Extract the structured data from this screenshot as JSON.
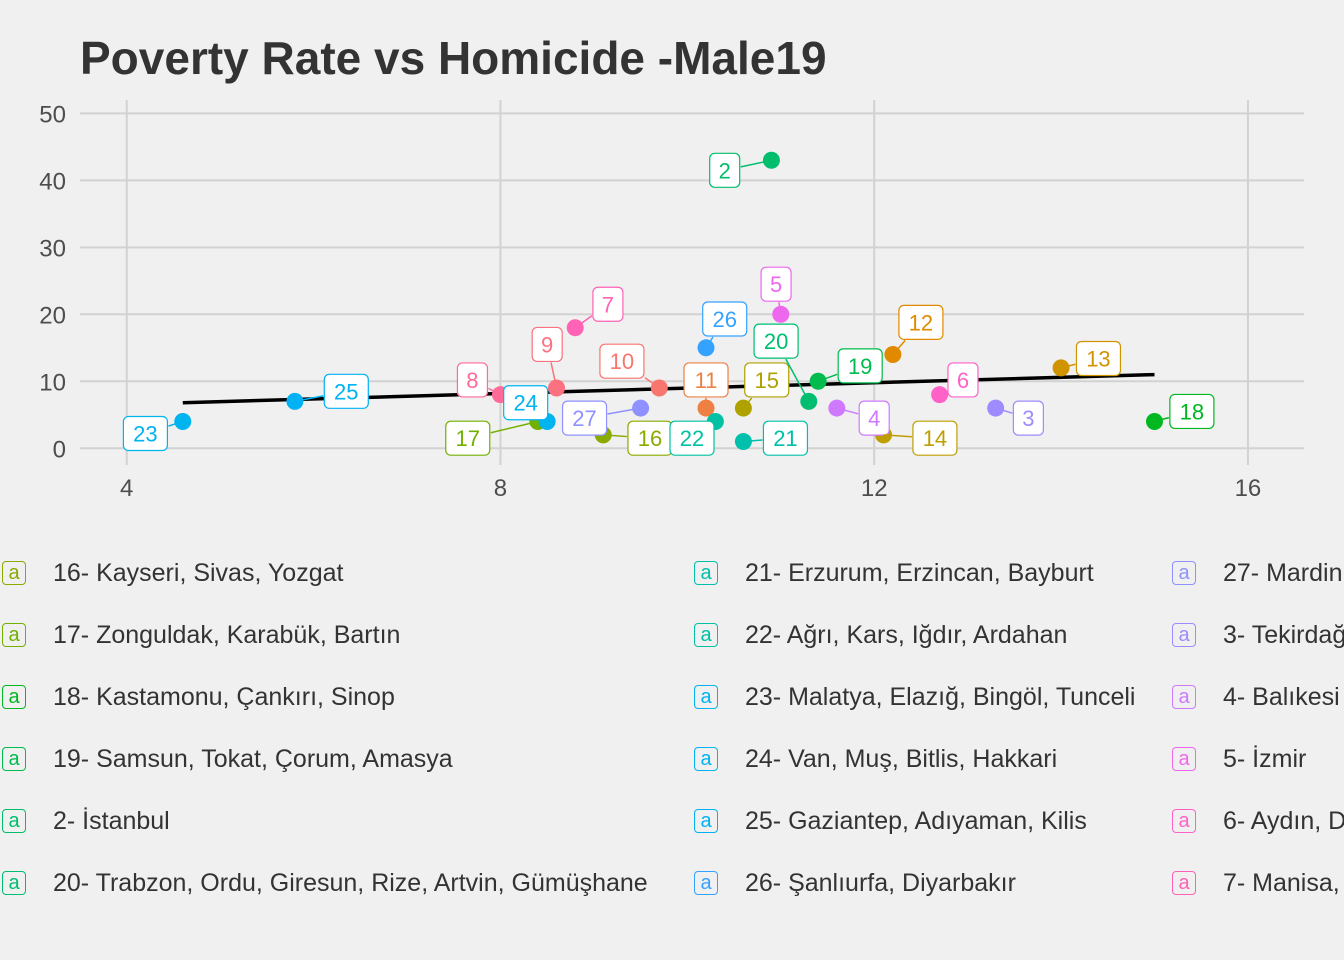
{
  "chart_data": {
    "type": "scatter",
    "title": "Poverty Rate vs Homicide -Male19",
    "xlabel": "",
    "ylabel": "",
    "xlim": [
      3.5,
      16.6
    ],
    "ylim": [
      -2.5,
      52
    ],
    "x_ticks": [
      4,
      8,
      12,
      16
    ],
    "y_ticks": [
      0,
      10,
      20,
      30,
      40,
      50
    ],
    "grid": true,
    "legend_position": "bottom",
    "points": [
      {
        "label": "2",
        "x": 10.9,
        "y": 43,
        "color": "#00BE6C",
        "lx": 10.4,
        "ly": 41.5
      },
      {
        "label": "3",
        "x": 13.3,
        "y": 6,
        "color": "#9D8BFF",
        "lx": 13.65,
        "ly": 4.5
      },
      {
        "label": "4",
        "x": 11.6,
        "y": 6,
        "color": "#CE79FF",
        "lx": 12.0,
        "ly": 4.5
      },
      {
        "label": "5",
        "x": 11.0,
        "y": 20,
        "color": "#ED68ED",
        "lx": 10.95,
        "ly": 24.5
      },
      {
        "label": "6",
        "x": 12.7,
        "y": 8,
        "color": "#FF61C9",
        "lx": 12.95,
        "ly": 10.2
      },
      {
        "label": "7",
        "x": 8.8,
        "y": 18,
        "color": "#FF63B5",
        "lx": 9.15,
        "ly": 21.5
      },
      {
        "label": "8",
        "x": 8.0,
        "y": 8,
        "color": "#FF6A98",
        "lx": 7.7,
        "ly": 10.2
      },
      {
        "label": "9",
        "x": 8.6,
        "y": 9,
        "color": "#FC717F",
        "lx": 8.5,
        "ly": 15.5
      },
      {
        "label": "10",
        "x": 9.7,
        "y": 9,
        "color": "#F8766D",
        "lx": 9.3,
        "ly": 13.0
      },
      {
        "label": "11",
        "x": 10.2,
        "y": 6,
        "color": "#EE8044",
        "lx": 10.2,
        "ly": 10.2
      },
      {
        "label": "12",
        "x": 12.2,
        "y": 14,
        "color": "#E18A00",
        "lx": 12.5,
        "ly": 18.8
      },
      {
        "label": "13",
        "x": 14.0,
        "y": 12,
        "color": "#D09400",
        "lx": 14.4,
        "ly": 13.4
      },
      {
        "label": "14",
        "x": 12.1,
        "y": 2,
        "color": "#BF9E00",
        "lx": 12.65,
        "ly": 1.5
      },
      {
        "label": "15",
        "x": 10.6,
        "y": 6,
        "color": "#AFA100",
        "lx": 10.85,
        "ly": 10.2
      },
      {
        "label": "16",
        "x": 9.1,
        "y": 2,
        "color": "#8AAA00",
        "lx": 9.6,
        "ly": 1.5
      },
      {
        "label": "17",
        "x": 8.4,
        "y": 4,
        "color": "#72B000",
        "lx": 7.65,
        "ly": 1.5
      },
      {
        "label": "18",
        "x": 15.0,
        "y": 4,
        "color": "#00B81F",
        "lx": 15.4,
        "ly": 5.5
      },
      {
        "label": "19",
        "x": 11.4,
        "y": 10,
        "color": "#00BB4E",
        "lx": 11.85,
        "ly": 12.3
      },
      {
        "label": "20",
        "x": 11.3,
        "y": 7,
        "color": "#00BE70",
        "lx": 10.95,
        "ly": 16.0
      },
      {
        "label": "21",
        "x": 10.6,
        "y": 1,
        "color": "#00C0AB",
        "lx": 11.05,
        "ly": 1.5
      },
      {
        "label": "22",
        "x": 10.3,
        "y": 4,
        "color": "#00C1A3",
        "lx": 10.05,
        "ly": 1.5
      },
      {
        "label": "23",
        "x": 4.6,
        "y": 4,
        "color": "#00B4EF",
        "lx": 4.2,
        "ly": 2.2
      },
      {
        "label": "24",
        "x": 8.5,
        "y": 4,
        "color": "#00B4F0",
        "lx": 8.27,
        "ly": 6.8
      },
      {
        "label": "25",
        "x": 5.8,
        "y": 7,
        "color": "#00B2F3",
        "lx": 6.35,
        "ly": 8.5
      },
      {
        "label": "26",
        "x": 10.2,
        "y": 15,
        "color": "#35A2FF",
        "lx": 10.4,
        "ly": 19.3
      },
      {
        "label": "27",
        "x": 9.5,
        "y": 6,
        "color": "#8E91FF",
        "lx": 8.9,
        "ly": 4.5
      }
    ],
    "trend_line": {
      "x": [
        4.6,
        15.0
      ],
      "y": [
        6.8,
        11.0
      ],
      "color": "#000000"
    }
  },
  "legend": {
    "key_glyph": "a",
    "columns": [
      [
        {
          "text": "16- Kayseri, Sivas, Yozgat",
          "color": "#8AAA00"
        },
        {
          "text": "17- Zonguldak, Karabük, Bartın",
          "color": "#72B000"
        },
        {
          "text": "18- Kastamonu, Çankırı, Sinop",
          "color": "#00B81F"
        },
        {
          "text": "19- Samsun, Tokat, Çorum, Amasya",
          "color": "#00BB4E"
        },
        {
          "text": "2- İstanbul",
          "color": "#00BE6C"
        },
        {
          "text": "20- Trabzon, Ordu, Giresun, Rize, Artvin, Gümüşhane",
          "color": "#00BE70"
        }
      ],
      [
        {
          "text": "21- Erzurum, Erzincan, Bayburt",
          "color": "#00C0AB"
        },
        {
          "text": "22- Ağrı, Kars, Iğdır, Ardahan",
          "color": "#00C1A3"
        },
        {
          "text": "23- Malatya, Elazığ, Bingöl, Tunceli",
          "color": "#00B4EF"
        },
        {
          "text": "24- Van, Muş, Bitlis, Hakkari",
          "color": "#00B4F0"
        },
        {
          "text": "25- Gaziantep, Adıyaman, Kilis",
          "color": "#00B2F3"
        },
        {
          "text": "26- Şanlıurfa, Diyarbakır",
          "color": "#35A2FF"
        }
      ],
      [
        {
          "text": "27- Mardin",
          "color": "#8E91FF"
        },
        {
          "text": "3- Tekirdağ",
          "color": "#9D8BFF"
        },
        {
          "text": "4- Balıkesi",
          "color": "#CE79FF"
        },
        {
          "text": "5- İzmir",
          "color": "#ED68ED"
        },
        {
          "text": "6- Aydın, D",
          "color": "#FF61C9"
        },
        {
          "text": "7- Manisa,",
          "color": "#FF63B5"
        }
      ]
    ]
  }
}
